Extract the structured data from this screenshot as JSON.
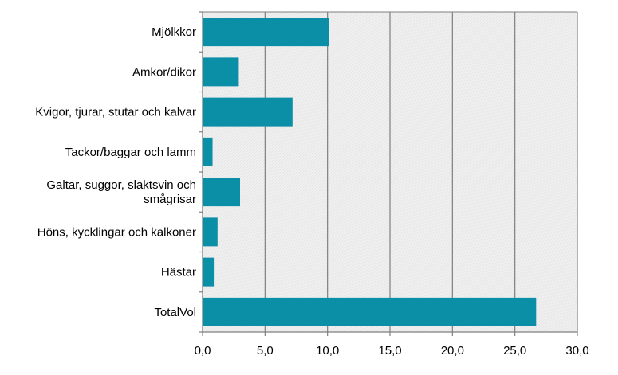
{
  "colors": {
    "bar": "#0b8fa6",
    "plot_background": "#efefef",
    "gridline": "#7f7f7f",
    "axis": "#7f7f7f"
  },
  "chart_data": {
    "type": "bar",
    "orientation": "horizontal",
    "categories": [
      [
        "Mjölkkor"
      ],
      [
        "Amkor/dikor"
      ],
      [
        "Kvigor, tjurar, stutar och kalvar"
      ],
      [
        "Tackor/baggar och lamm"
      ],
      [
        "Galtar, suggor, slaktsvin och",
        "smågrisar"
      ],
      [
        "Höns, kycklingar och kalkoner"
      ],
      [
        "Hästar"
      ],
      [
        "TotalVol"
      ]
    ],
    "values": [
      10.1,
      2.9,
      7.2,
      0.8,
      3.0,
      1.2,
      0.9,
      26.7
    ],
    "xlim": [
      0,
      30
    ],
    "xticks": [
      0,
      5,
      10,
      15,
      20,
      25,
      30
    ],
    "xtick_labels": [
      "0,0",
      "5,0",
      "10,0",
      "15,0",
      "20,0",
      "25,0",
      "30,0"
    ],
    "grid": "vertical",
    "legend": "none"
  }
}
